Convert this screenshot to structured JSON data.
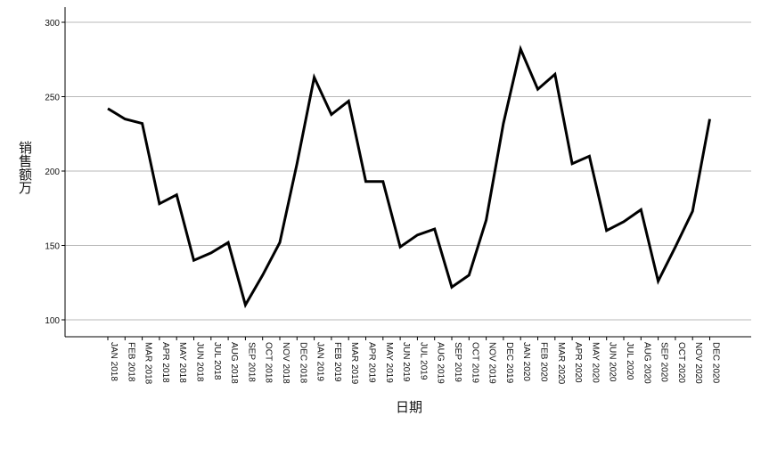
{
  "chart_data": {
    "type": "line",
    "title": "",
    "xlabel": "日期",
    "ylabel": "销售额万",
    "ylim": [
      90,
      310
    ],
    "yticks": [
      100,
      150,
      200,
      250,
      300
    ],
    "grid": "horizontal",
    "categories": [
      "JAN 2018",
      "FEB 2018",
      "MAR 2018",
      "APR 2018",
      "MAY 2018",
      "JUN 2018",
      "JUL 2018",
      "AUG 2018",
      "SEP 2018",
      "OCT 2018",
      "NOV 2018",
      "DEC 2018",
      "JAN 2019",
      "FEB 2019",
      "MAR 2019",
      "APR 2019",
      "MAY 2019",
      "JUN 2019",
      "JUL 2019",
      "AUG 2019",
      "SEP 2019",
      "OCT 2019",
      "NOV 2019",
      "DEC 2019",
      "JAN 2020",
      "FEB 2020",
      "MAR 2020",
      "APR 2020",
      "MAY 2020",
      "JUN 2020",
      "JUL 2020",
      "AUG 2020",
      "SEP 2020",
      "OCT 2020",
      "NOV 2020",
      "DEC 2020"
    ],
    "series": [
      {
        "values": [
          242,
          235,
          232,
          178,
          184,
          140,
          145,
          152,
          110,
          130,
          152,
          205,
          263,
          238,
          247,
          193,
          193,
          149,
          157,
          161,
          122,
          130,
          167,
          232,
          282,
          255,
          265,
          205,
          210,
          160,
          166,
          174,
          126,
          149,
          173,
          235
        ],
        "color": "#000000"
      }
    ]
  }
}
